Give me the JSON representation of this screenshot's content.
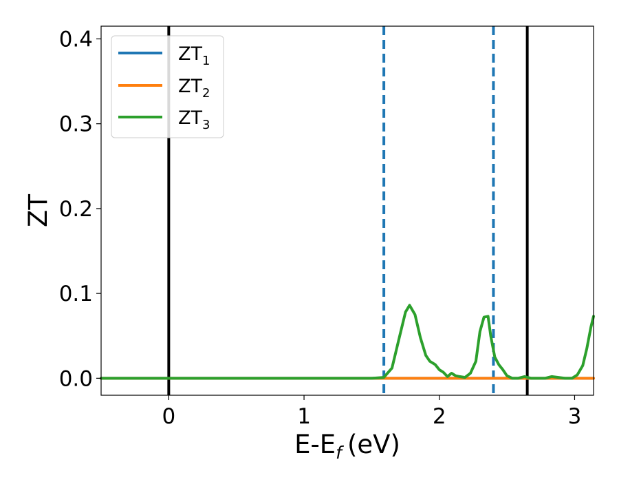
{
  "chart_data": {
    "type": "line",
    "title": "",
    "xlabel": "E-E",
    "xlabel_sub": "f",
    "xlabel_unit": "(eV)",
    "ylabel": "ZT",
    "xlim": [
      -0.5,
      3.14
    ],
    "ylim": [
      -0.02,
      0.415
    ],
    "xticks": [
      0,
      1,
      2,
      3
    ],
    "xtick_labels": [
      "0",
      "1",
      "2",
      "3"
    ],
    "yticks": [
      0.0,
      0.1,
      0.2,
      0.3,
      0.4
    ],
    "ytick_labels": [
      "0.0",
      "0.1",
      "0.2",
      "0.3",
      "0.4"
    ],
    "grid": false,
    "legend_position": "top-left",
    "vlines": [
      {
        "x": 0.0,
        "style": "solid",
        "color": "#000000"
      },
      {
        "x": 1.59,
        "style": "dashed",
        "color": "#1f77b4"
      },
      {
        "x": 2.4,
        "style": "dashed",
        "color": "#1f77b4"
      },
      {
        "x": 2.65,
        "style": "solid",
        "color": "#000000"
      }
    ],
    "series": [
      {
        "name": "ZT",
        "name_sub": "1",
        "color": "#1f77b4",
        "x": [
          -0.5,
          3.14
        ],
        "y": [
          0.0,
          0.0
        ]
      },
      {
        "name": "ZT",
        "name_sub": "2",
        "color": "#ff7f0e",
        "x": [
          -0.5,
          3.14
        ],
        "y": [
          0.0,
          0.0
        ]
      },
      {
        "name": "ZT",
        "name_sub": "3",
        "color": "#2ca02c",
        "x": [
          -0.5,
          1.5,
          1.59,
          1.65,
          1.7,
          1.75,
          1.78,
          1.82,
          1.86,
          1.9,
          1.93,
          1.97,
          2.0,
          2.03,
          2.06,
          2.09,
          2.12,
          2.15,
          2.19,
          2.23,
          2.27,
          2.3,
          2.33,
          2.36,
          2.38,
          2.41,
          2.44,
          2.47,
          2.5,
          2.54,
          2.58,
          2.63,
          2.68,
          2.73,
          2.78,
          2.83,
          2.88,
          2.93,
          2.98,
          3.02,
          3.06,
          3.09,
          3.12,
          3.14
        ],
        "y": [
          0.0,
          0.0,
          0.001,
          0.012,
          0.045,
          0.078,
          0.086,
          0.075,
          0.048,
          0.027,
          0.02,
          0.016,
          0.01,
          0.007,
          0.002,
          0.006,
          0.003,
          0.002,
          0.001,
          0.006,
          0.02,
          0.055,
          0.072,
          0.073,
          0.05,
          0.025,
          0.016,
          0.01,
          0.003,
          0.0,
          0.0,
          0.002,
          0.0,
          0.0,
          0.0,
          0.002,
          0.001,
          0.0,
          0.0,
          0.004,
          0.015,
          0.035,
          0.06,
          0.073
        ]
      }
    ]
  }
}
